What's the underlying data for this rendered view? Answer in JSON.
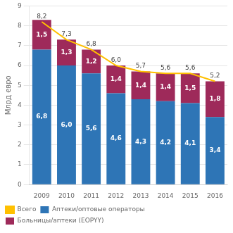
{
  "chart_data": {
    "type": "bar",
    "ylabel": "Млрд евро",
    "categories": [
      "2009",
      "2010",
      "2011",
      "2012",
      "2013",
      "2014",
      "2015",
      "2016"
    ],
    "series": [
      {
        "name": "Аптеки/оптовые операторы",
        "color": "#2E75B6",
        "values": [
          6.8,
          6.0,
          5.6,
          4.6,
          4.3,
          4.2,
          4.1,
          3.4
        ],
        "value_labels": [
          "6,8",
          "6,0",
          "5,6",
          "4,6",
          "4,3",
          "4,2",
          "4,1",
          "3,4"
        ]
      },
      {
        "name": "Больницы/аптеки (EOPYY)",
        "color": "#9E2A5A",
        "values": [
          1.5,
          1.3,
          1.2,
          1.4,
          1.4,
          1.4,
          1.5,
          1.8
        ],
        "value_labels": [
          "1,5",
          "1,3",
          "1,2",
          "1,4",
          "1,4",
          "1,4",
          "1,5",
          "1,8"
        ]
      },
      {
        "name": "Всего",
        "type": "line",
        "color": "#FFC000",
        "values": [
          8.2,
          7.3,
          6.8,
          6.0,
          5.7,
          5.6,
          5.6,
          5.2
        ],
        "value_labels": [
          "8,2",
          "7,3",
          "6,8",
          "6,0",
          "5,7",
          "5,6",
          "5,6",
          "5,2"
        ]
      }
    ],
    "stacked": true,
    "data_labels": true,
    "ylim": [
      0,
      9
    ],
    "yticks": [
      0,
      1,
      2,
      3,
      4,
      5,
      6,
      7,
      8,
      9
    ],
    "grid": true,
    "legend": "bottom"
  }
}
